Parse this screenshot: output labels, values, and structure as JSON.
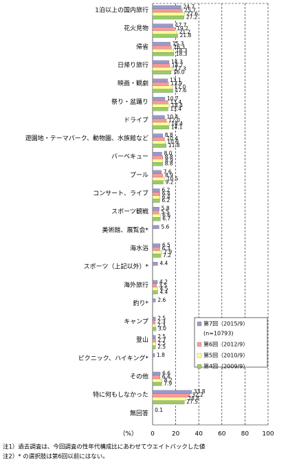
{
  "chart_data": {
    "type": "bar",
    "orientation": "horizontal",
    "categories": [
      "1泊以上の国内旅行",
      "花火見物",
      "帰省",
      "日帰り旅行",
      "映画・観劇",
      "祭り・盆踊り",
      "ドライブ",
      "遊園地・テーマパーク、動物園、水族館など",
      "バーベキュー",
      "プール",
      "コンサート、ライブ",
      "スポーツ観戦",
      "美術館、展覧会*",
      "海水浴",
      "スポーツ（上記以外）*",
      "海外旅行",
      "釣り*",
      "キャンプ",
      "登山",
      "ピクニック、ハイキング*",
      "その他",
      "特に何もしなかった",
      "無回答"
    ],
    "series": [
      {
        "name": "第7回（2015/9）",
        "note": "(n=10793)",
        "color": "#9999cc",
        "values": [
          24.7,
          17.7,
          15.3,
          14.3,
          13.1,
          10.7,
          10.4,
          8.8,
          8.0,
          7.6,
          6.2,
          5.8,
          5.6,
          6.5,
          4.4,
          4.2,
          2.6,
          2.5,
          2.5,
          1.8,
          6.6,
          33.8,
          0.1
        ],
        "value_labels": [
          "24.7",
          "17.7",
          "15.3",
          "14.3",
          "13.1",
          "10.7",
          "10.4",
          "8.8",
          "8.0",
          "7.6",
          "6.2",
          "5.8",
          "5.6",
          "6.5",
          "4.4",
          "4.2",
          "2.6",
          "2.5",
          "2.5",
          "1.8",
          "6.6",
          "33.8",
          "0.1"
        ]
      },
      {
        "name": "第6回（2012/9）",
        "color": "#ff9999",
        "values": [
          25.7,
          19.2,
          16.3,
          14.7,
          13.9,
          13.4,
          12.0,
          10.4,
          8.8,
          8.9,
          6.4,
          5.5,
          null,
          6.3,
          null,
          3.5,
          null,
          2.3,
          2.7,
          null,
          6.4,
          32.2,
          null
        ],
        "value_labels": [
          "25.7",
          "19.2",
          "16.3",
          "14.7",
          "13.9",
          "13.4",
          "12.0",
          "10.4",
          "8.8",
          "8.9",
          "6.4",
          "5.5",
          null,
          "6.3",
          null,
          "3.5",
          null,
          "2.3",
          "2.7",
          null,
          "6.4",
          "32.2",
          null
        ]
      },
      {
        "name": "第5回（2010/9）",
        "color": "#ffff99",
        "values": [
          27.6,
          21.2,
          18.3,
          17.3,
          17.0,
          14.4,
          14.4,
          10.9,
          8.9,
          10.5,
          6.4,
          6.6,
          null,
          7.9,
          null,
          4.5,
          null,
          2.3,
          2.5,
          null,
          8.2,
          28.8,
          null
        ],
        "value_labels": [
          "27.6",
          "21.2",
          "18.3",
          "17.3",
          "17.0",
          "14.4",
          "14.4",
          "10.9",
          "8.9",
          "10.5",
          "6.4",
          "6.6",
          null,
          "7.9",
          null,
          "4.5",
          null,
          "2.3",
          "2.5",
          null,
          "8.2",
          "28.8",
          null
        ]
      },
      {
        "name": "第4回（2009/9）",
        "color": "#99cc66",
        "values": [
          27.2,
          21.8,
          18.3,
          16.0,
          17.6,
          13.4,
          14.1,
          11.8,
          8.8,
          9.2,
          6.2,
          6.7,
          null,
          7.2,
          null,
          4.4,
          null,
          3.0,
          2.5,
          null,
          7.9,
          27.5,
          null
        ],
        "value_labels": [
          "27.2",
          "21.8",
          "18.3",
          "16.0",
          "17.6",
          "13.4",
          "14.1",
          "11.8",
          "8.8",
          "9.2",
          "6.2",
          "6.7",
          null,
          "7.2",
          null,
          "4.4",
          null,
          "3.0",
          "2.5",
          null,
          "7.9",
          "27.5",
          null
        ]
      }
    ],
    "xlim": [
      0,
      100
    ],
    "xticks": [
      0,
      20,
      40,
      60,
      80,
      100
    ],
    "xlabel": "（%）",
    "grid": true,
    "notes": [
      "注1）過去調査は、今回調査の性年代構成比にあわせてウエイトバックした値",
      "注2）* の選択肢は第6回以前にはない。"
    ]
  }
}
